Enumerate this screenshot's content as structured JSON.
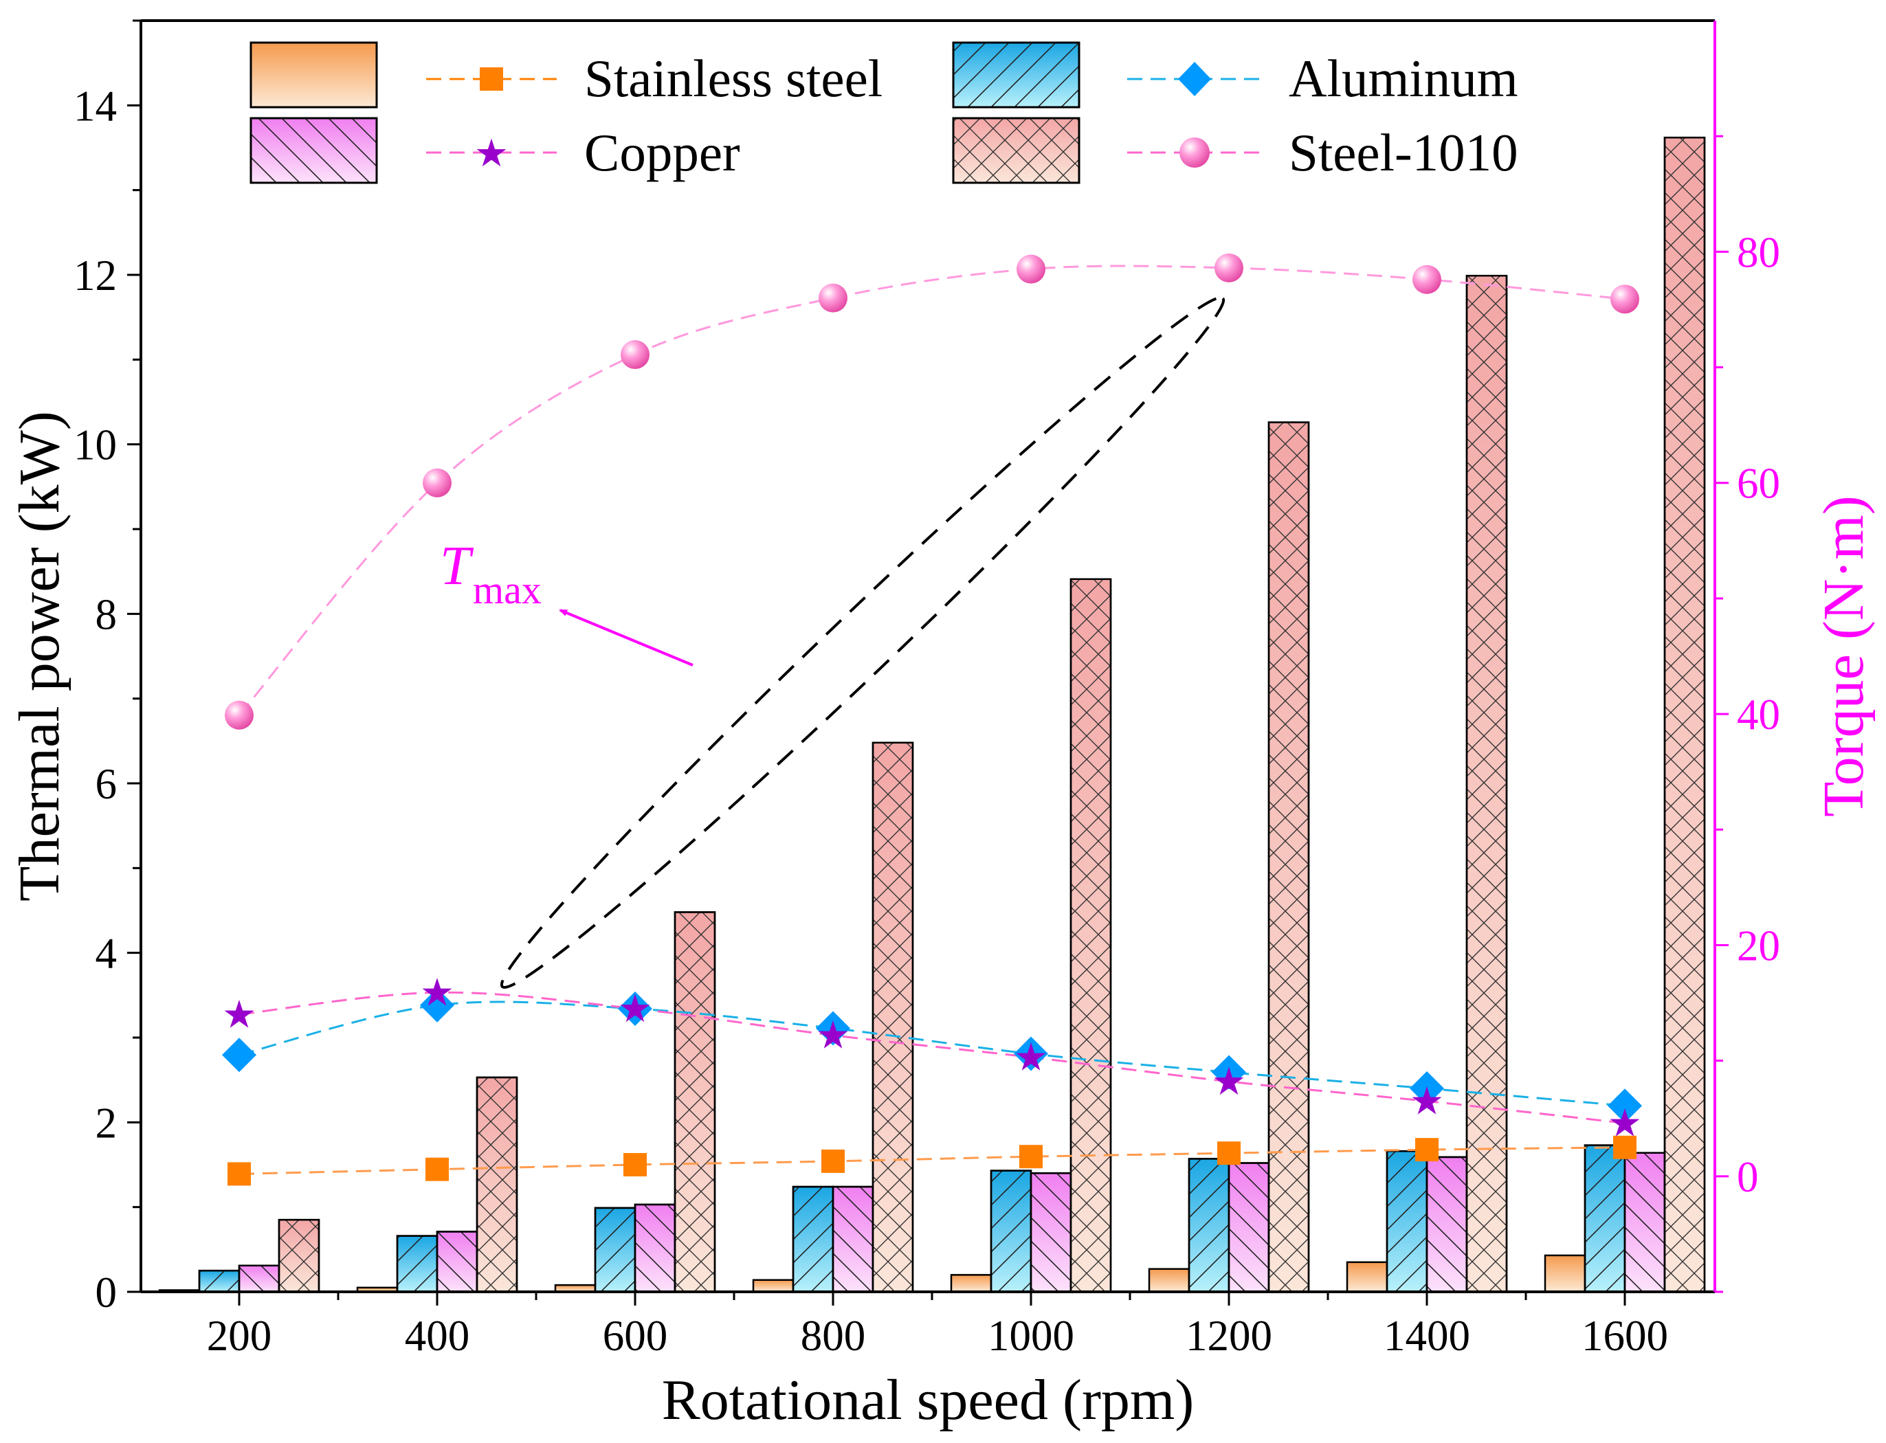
{
  "chart_data": {
    "type": "bar+line",
    "xlabel": "Rotational speed (rpm)",
    "ylabel": "Thermal power (kW)",
    "y2label": "Torque (N·m)",
    "categories": [
      "200",
      "400",
      "600",
      "800",
      "1000",
      "1200",
      "1400",
      "1600"
    ],
    "ylim": [
      0,
      15
    ],
    "y2lim": [
      -10,
      100
    ],
    "yticks": [
      "0",
      "2",
      "4",
      "6",
      "8",
      "10",
      "12",
      "14"
    ],
    "y2ticks": [
      "0",
      "20",
      "40",
      "60",
      "80"
    ],
    "bar_series": [
      {
        "name": "Stainless steel",
        "values": [
          0.02,
          0.05,
          0.08,
          0.14,
          0.2,
          0.27,
          0.35,
          0.43
        ]
      },
      {
        "name": "Aluminum",
        "values": [
          0.25,
          0.66,
          0.99,
          1.24,
          1.43,
          1.57,
          1.66,
          1.73
        ]
      },
      {
        "name": "Copper",
        "values": [
          0.31,
          0.71,
          1.03,
          1.24,
          1.4,
          1.52,
          1.59,
          1.64
        ]
      },
      {
        "name": "Steel-1010",
        "values": [
          0.85,
          2.53,
          4.48,
          6.48,
          8.41,
          10.26,
          11.99,
          13.62
        ]
      }
    ],
    "torque_series": [
      {
        "name": "Stainless steel",
        "values": [
          0.2,
          0.6,
          1.0,
          1.3,
          1.7,
          2.0,
          2.3,
          2.5
        ]
      },
      {
        "name": "Aluminum",
        "values": [
          10.5,
          14.8,
          14.5,
          12.8,
          10.6,
          9.0,
          7.6,
          6.1
        ]
      },
      {
        "name": "Copper",
        "values": [
          14.0,
          15.9,
          14.5,
          12.2,
          10.3,
          8.2,
          6.5,
          4.6
        ]
      },
      {
        "name": "Steel-1010",
        "values": [
          39.9,
          60.0,
          71.1,
          76.0,
          78.5,
          78.6,
          77.6,
          75.9
        ]
      }
    ],
    "legend": [
      "Stainless steel",
      "Aluminum",
      "Copper",
      "Steel-1010"
    ],
    "annotation": {
      "symbol": "T",
      "subscript": "max"
    }
  },
  "colors": {
    "stainless": "#ff8000",
    "aluminum": "#0099ff",
    "copper": "#9900cc",
    "steel1010": "#ff66cc",
    "right_axis": "#ff00ff"
  }
}
